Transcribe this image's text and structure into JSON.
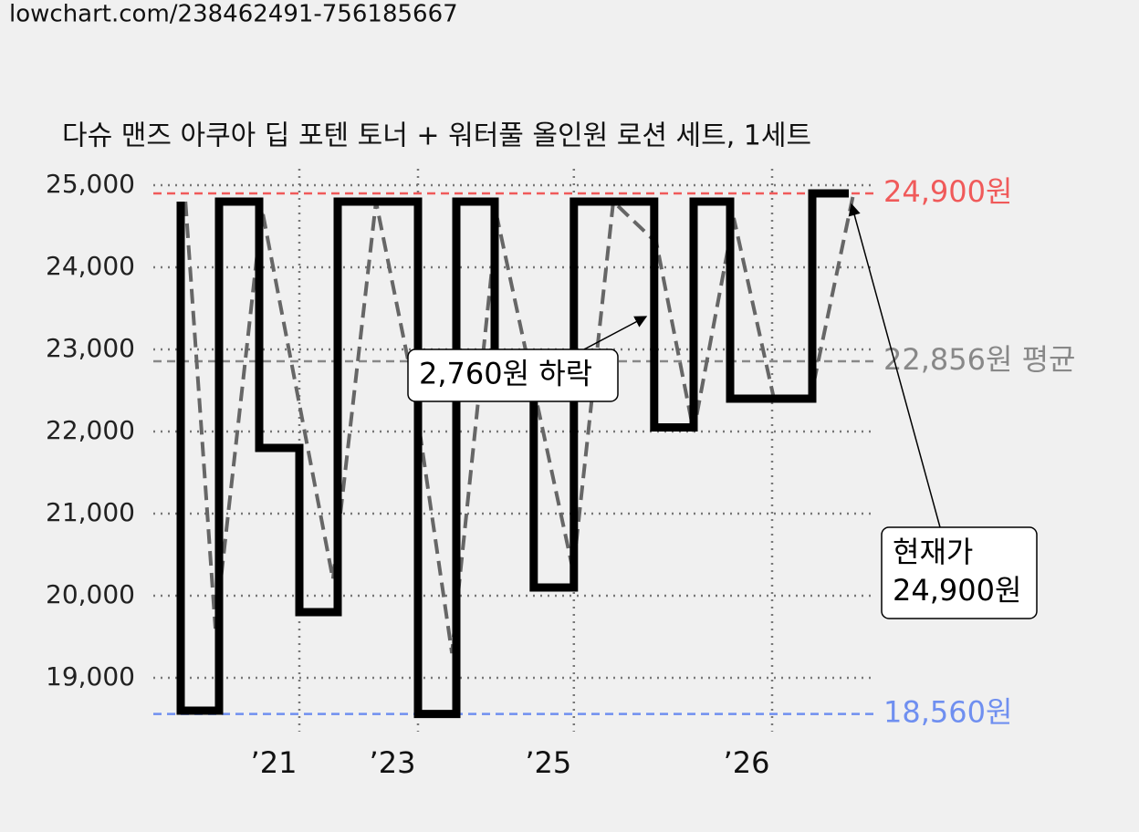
{
  "header": {
    "url": "lowchart.com/238462491-756185667"
  },
  "chart_data": {
    "type": "step-line",
    "title": "다슈 맨즈 아쿠아 딥 포텐 토너 + 워터풀 올인원 로션 세트, 1세트",
    "xlim": [
      0,
      99
    ],
    "xticks": [
      {
        "value": 20,
        "label": "’21"
      },
      {
        "value": 36.25,
        "label": "’23"
      },
      {
        "value": 57.6,
        "label": "’25"
      },
      {
        "value": 84.75,
        "label": "’26"
      }
    ],
    "ylim": [
      18350,
      25150
    ],
    "yticks": [
      {
        "value": 19000,
        "label": "19,000"
      },
      {
        "value": 20000,
        "label": "20,000"
      },
      {
        "value": 21000,
        "label": "21,000"
      },
      {
        "value": 22000,
        "label": "22,000"
      },
      {
        "value": 23000,
        "label": "23,000"
      },
      {
        "value": 24000,
        "label": "24,000"
      },
      {
        "value": 25000,
        "label": "25,000"
      }
    ],
    "grid": true,
    "series": [
      {
        "style": "step",
        "color": "#000000",
        "x": [
          3.75,
          3.75,
          9,
          14.5,
          20,
          25.25,
          36.25,
          41.5,
          46.75,
          52.1,
          57.6,
          68.6,
          74,
          79,
          90.25,
          95.25
        ],
        "values": [
          24800,
          18600,
          24800,
          21800,
          19800,
          24800,
          18560,
          24800,
          22600,
          20100,
          24800,
          22050,
          24800,
          22400,
          24900,
          24900
        ]
      },
      {
        "style": "dashed",
        "color": "#666666",
        "x": [
          4.4,
          8.5,
          14.9,
          24.6,
          30.5,
          35.5,
          40.9,
          47.1,
          57.5,
          63,
          68.9,
          74,
          79.5,
          85,
          90,
          95.9
        ],
        "values": [
          24800,
          19600,
          24700,
          20200,
          24800,
          22600,
          19300,
          24600,
          20300,
          24800,
          24300,
          22000,
          24600,
          22400,
          22400,
          24900
        ]
      }
    ],
    "reference_lines": [
      {
        "value": 24900,
        "label": "24,900원",
        "color": "#f05a5a"
      },
      {
        "value": 22856,
        "label": "22,856원 평균",
        "color": "#888888"
      },
      {
        "value": 18560,
        "label": "18,560원",
        "color": "#6f8ff0"
      }
    ],
    "annotations": [
      {
        "lines": [
          "2,760원 하락"
        ]
      },
      {
        "lines": [
          "현재가",
          "24,900원"
        ]
      }
    ]
  }
}
